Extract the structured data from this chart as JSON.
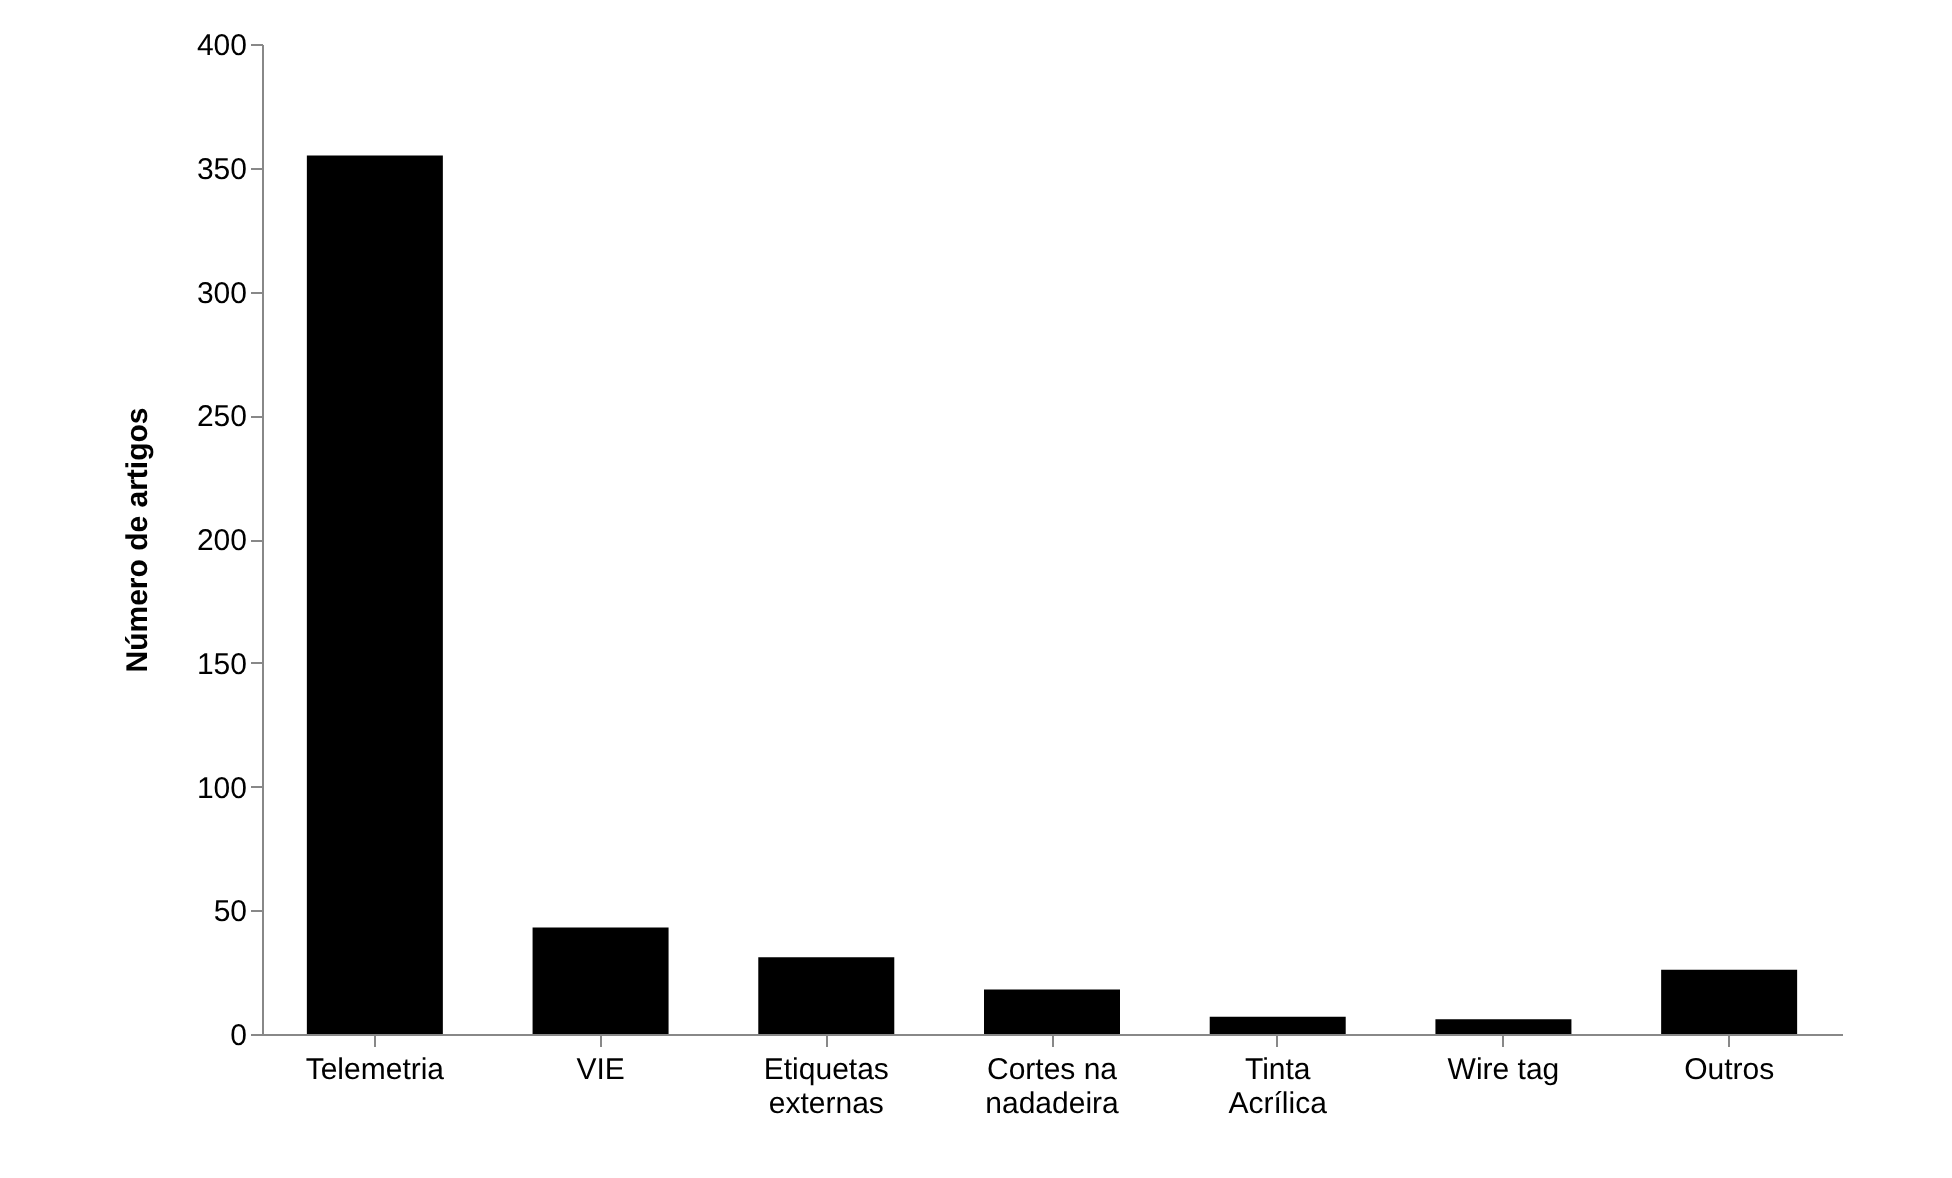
{
  "chart_data": {
    "type": "bar",
    "ylabel": "Número de artigos",
    "categories": [
      "Telemetria",
      "VIE",
      "Etiquetas externas",
      "Cortes na nadadeira",
      "Tinta Acrílica",
      "Wire tag",
      "Outros"
    ],
    "values": [
      355,
      43,
      31,
      18,
      7,
      6,
      26
    ],
    "color": "#000000",
    "ylim": [
      0,
      400
    ],
    "yticks": [
      0,
      50,
      100,
      150,
      200,
      250,
      300,
      350,
      400
    ],
    "grid": false
  }
}
